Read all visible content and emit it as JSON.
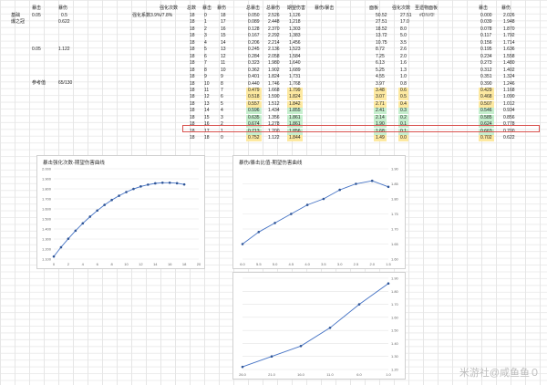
{
  "left_panel": {
    "col_headers": [
      "暴击",
      "暴伤"
    ],
    "base_label": "基础",
    "crown_label": "爆之冠",
    "base_row": [
      "0.05",
      "0.5"
    ],
    "crown_row": [
      "",
      "0.622"
    ],
    "row3": [
      "0.05",
      "1.122"
    ],
    "ref_label": "参考值",
    "ref_value": "65/130",
    "enhance_header": "强化次数",
    "enhance_coef": "强化系数3.9%/7.8%"
  },
  "table": {
    "headers": [
      "总数",
      "暴击",
      "暴伤",
      "",
      "总暴击",
      "总暴伤",
      "期望伤害",
      "暴伤/暴击",
      "",
      "面板",
      "强化次数",
      "圣遗物面板",
      "",
      "暴击",
      "暴伤"
    ],
    "extra_header": "#DIV/0!",
    "rows": [
      [
        "18",
        "0",
        "18",
        "0.050",
        "2.526",
        "1.126",
        "50.52",
        "27.51",
        "0.000",
        "2.026",
        "",
        ""
      ],
      [
        "18",
        "1",
        "17",
        "0.089",
        "2.448",
        "1.218",
        "27.51",
        "17.0",
        "0.039",
        "1.948",
        "",
        ""
      ],
      [
        "18",
        "2",
        "16",
        "0.128",
        "2.370",
        "1.303",
        "18.52",
        "8.0",
        "0.078",
        "1.870",
        "",
        ""
      ],
      [
        "18",
        "3",
        "15",
        "0.167",
        "2.292",
        "1.383",
        "13.72",
        "5.0",
        "0.117",
        "1.792",
        "",
        ""
      ],
      [
        "18",
        "4",
        "14",
        "0.206",
        "2.214",
        "1.456",
        "10.75",
        "3.5",
        "0.156",
        "1.714",
        "",
        ""
      ],
      [
        "18",
        "5",
        "13",
        "0.245",
        "2.136",
        "1.523",
        "8.72",
        "2.6",
        "0.195",
        "1.636",
        "",
        ""
      ],
      [
        "18",
        "6",
        "12",
        "0.284",
        "2.058",
        "1.584",
        "7.25",
        "2.0",
        "0.234",
        "1.558",
        "",
        ""
      ],
      [
        "18",
        "7",
        "11",
        "0.323",
        "1.980",
        "1.640",
        "6.13",
        "1.6",
        "0.273",
        "1.480",
        "",
        ""
      ],
      [
        "18",
        "8",
        "10",
        "0.362",
        "1.902",
        "1.689",
        "5.25",
        "1.3",
        "0.312",
        "1.402",
        "",
        ""
      ],
      [
        "18",
        "9",
        "9",
        "0.401",
        "1.824",
        "1.731",
        "4.55",
        "1.0",
        "0.351",
        "1.324",
        "",
        ""
      ],
      [
        "18",
        "10",
        "8",
        "0.440",
        "1.746",
        "1.768",
        "3.97",
        "0.8",
        "0.390",
        "1.246",
        "",
        ""
      ],
      [
        "18",
        "11",
        "7",
        "0.479",
        "1.668",
        "1.799",
        "3.48",
        "0.6",
        "0.429",
        "1.168",
        "y",
        "y"
      ],
      [
        "18",
        "12",
        "6",
        "0.518",
        "1.590",
        "1.824",
        "3.07",
        "0.5",
        "0.468",
        "1.090",
        "y",
        "y"
      ],
      [
        "18",
        "13",
        "5",
        "0.557",
        "1.512",
        "1.842",
        "2.71",
        "0.4",
        "0.507",
        "1.012",
        "y",
        "y"
      ],
      [
        "18",
        "14",
        "4",
        "0.596",
        "1.434",
        "1.855",
        "2.41",
        "0.3",
        "0.546",
        "0.934",
        "g",
        "g"
      ],
      [
        "18",
        "15",
        "3",
        "0.635",
        "1.356",
        "1.861",
        "2.14",
        "0.2",
        "0.585",
        "0.856",
        "g",
        "g"
      ],
      [
        "18",
        "16",
        "2",
        "0.674",
        "1.278",
        "1.861",
        "1.90",
        "0.1",
        "0.624",
        "0.778",
        "g",
        "g"
      ],
      [
        "18",
        "17",
        "1",
        "0.713",
        "1.200",
        "1.856",
        "1.68",
        "0.1",
        "0.663",
        "0.700",
        "g",
        "g"
      ],
      [
        "18",
        "18",
        "0",
        "0.752",
        "1.122",
        "1.844",
        "1.49",
        "0.0",
        "0.702",
        "0.622",
        "y",
        "y"
      ]
    ]
  },
  "charts": [
    {
      "title": "暴击强化次数-期望伤害曲线",
      "type": "line",
      "x": [
        0,
        1,
        2,
        3,
        4,
        5,
        6,
        7,
        8,
        9,
        10,
        11,
        12,
        13,
        14,
        15,
        16,
        17,
        18
      ],
      "y": [
        1.126,
        1.218,
        1.303,
        1.383,
        1.456,
        1.523,
        1.584,
        1.64,
        1.689,
        1.731,
        1.768,
        1.799,
        1.824,
        1.842,
        1.855,
        1.861,
        1.861,
        1.856,
        1.844
      ],
      "xticks": [
        "0",
        "2",
        "4",
        "6",
        "8",
        "10",
        "12",
        "14",
        "16",
        "18",
        "20"
      ],
      "yticks": [
        "1.100",
        "1.200",
        "1.300",
        "1.400",
        "1.500",
        "1.600",
        "1.700",
        "1.800",
        "1.900",
        "2.000"
      ]
    },
    {
      "title": "暴伤/暴击比值-期望伤害曲线",
      "type": "line",
      "x": [
        6.0,
        5.5,
        5.0,
        4.5,
        4.0,
        3.5,
        3.0,
        2.5,
        2.0,
        1.5
      ],
      "y": [
        1.65,
        1.69,
        1.72,
        1.75,
        1.78,
        1.8,
        1.83,
        1.85,
        1.86,
        1.84
      ],
      "xticks": [
        "6.0",
        "5.5",
        "5.0",
        "4.5",
        "4.0",
        "3.5",
        "3.0",
        "2.5",
        "2.0",
        "1.5"
      ],
      "yticks": [
        "1.60",
        "1.65",
        "1.70",
        "1.75",
        "1.80",
        "1.85",
        "1.90"
      ]
    },
    {
      "title": "",
      "type": "line",
      "x": [
        26.0,
        21.0,
        16.0,
        11.0,
        6.0,
        1.0
      ],
      "y": [
        1.22,
        1.3,
        1.38,
        1.52,
        1.7,
        1.86
      ],
      "xticks": [
        "26.0",
        "21.0",
        "16.0",
        "11.0",
        "6.0",
        "1.0"
      ],
      "yticks": [
        "1.20",
        "1.30",
        "1.40",
        "1.50",
        "1.60",
        "1.70",
        "1.80",
        "1.90"
      ]
    }
  ],
  "watermark": "米游社@咸鱼鱼０"
}
